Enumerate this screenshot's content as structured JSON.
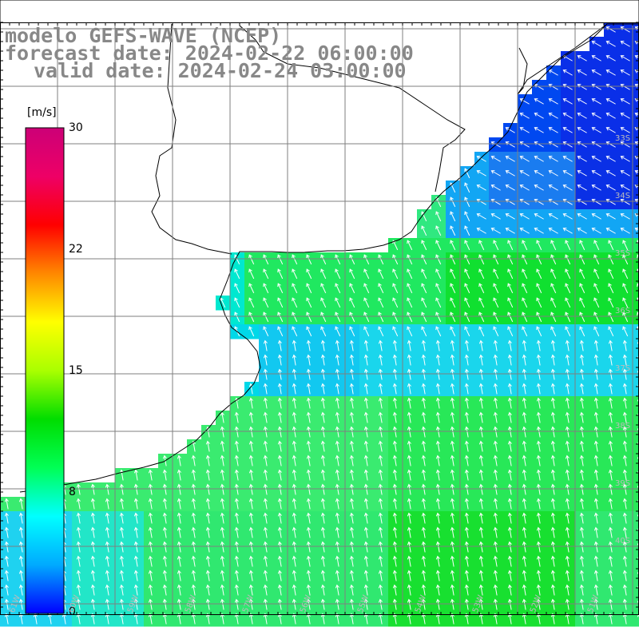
{
  "title": {
    "line1": "modelo GEFS-WAVE (NCEP)",
    "line2": "forecast date: 2024-02-22 06:00:00",
    "line3": "valid date: 2024-02-24 03:00:00"
  },
  "colorbar": {
    "unit": "[m/s]",
    "ticks": [
      "30",
      "22",
      "15",
      "8",
      "0"
    ],
    "tick_values": [
      30,
      22,
      15,
      8,
      0
    ],
    "min": 0,
    "max": 30,
    "colors": [
      "#0000ff",
      "#00aaff",
      "#00ffff",
      "#00ff55",
      "#00dd00",
      "#aaff00",
      "#ffff00",
      "#ff8800",
      "#ff0000",
      "#ee0066",
      "#cc0077"
    ]
  },
  "lat_labels": [
    "33S",
    "34S",
    "35S",
    "36S",
    "37S",
    "38S",
    "39S",
    "40S"
  ],
  "lon_labels": [
    "61W",
    "60W",
    "59W",
    "58W",
    "57W",
    "56W",
    "55W",
    "54W",
    "53W",
    "52W",
    "51W"
  ],
  "colors": {
    "land": "#ffffff",
    "coast": "#000000",
    "grid": "#7f7f7f",
    "title": "#888888"
  }
}
